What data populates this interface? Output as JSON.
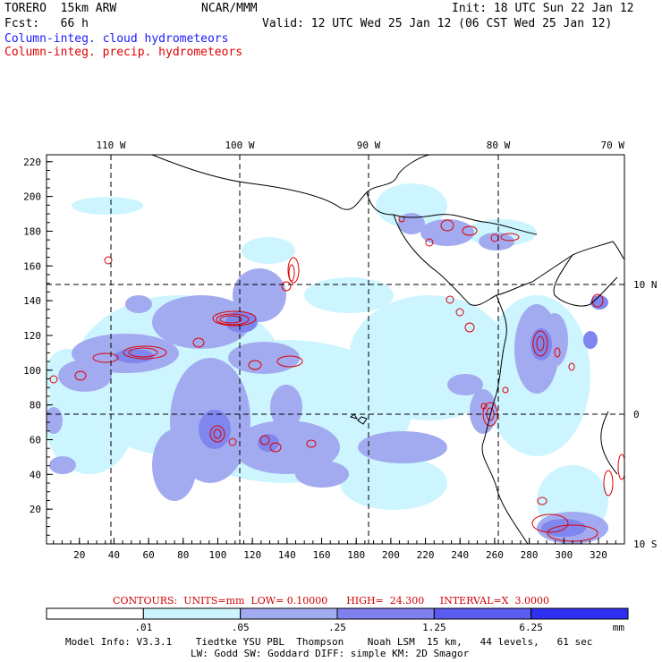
{
  "header": {
    "model": "TORERO  15km ARW",
    "center": "NCAR/MMM",
    "init": "Init: 18 UTC Sun 22 Jan 12",
    "fcst": "Fcst:   66 h",
    "valid": "Valid: 12 UTC Wed 25 Jan 12 (06 CST Wed 25 Jan 12)",
    "legend_cloud": "Column-integ. cloud hydrometeors",
    "legend_precip": "Column-integ. precip. hydrometeors"
  },
  "map": {
    "x_ticks": [
      "20",
      "40",
      "60",
      "80",
      "100",
      "120",
      "140",
      "160",
      "180",
      "200",
      "220",
      "240",
      "260",
      "280",
      "300",
      "320"
    ],
    "y_ticks": [
      "20",
      "40",
      "60",
      "80",
      "100",
      "120",
      "140",
      "160",
      "180",
      "200",
      "220"
    ],
    "lon_labels": [
      "110 W",
      "100 W",
      "90 W",
      "80 W",
      "70 W"
    ],
    "lat_labels": [
      "10 N",
      "0",
      "10 S"
    ],
    "colors": {
      "cloud_light": "#ccf5ff",
      "cloud_mid": "#a3abf0",
      "cloud_dark": "#7f86ee",
      "precip": "#dd0000",
      "coast": "#000000",
      "grid": "#000000"
    }
  },
  "contours_text": "CONTOURS:  UNITS=mm  LOW= 0.10000      HIGH=  24.300     INTERVAL=X  3.0000",
  "colorbar": {
    "labels": [
      ".01",
      ".05",
      ".25",
      "1.25",
      "6.25",
      "mm"
    ],
    "colors": [
      "#ffffff",
      "#ccf5ff",
      "#a3abf0",
      "#8080ee",
      "#5a5cf0",
      "#2f2ff2"
    ]
  },
  "model_info": {
    "line1": "Model Info: V3.3.1    Tiedtke YSU PBL  Thompson    Noah LSM  15 km,   44 levels,   61 sec",
    "line2": "LW: Godd SW: Goddard DIFF: simple KM: 2D Smagor"
  }
}
